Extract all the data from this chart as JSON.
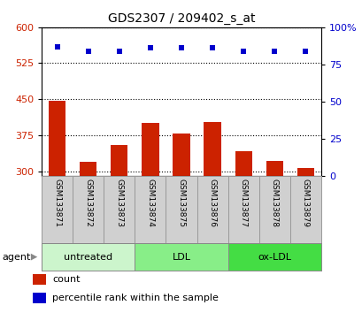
{
  "title": "GDS2307 / 209402_s_at",
  "samples": [
    "GSM133871",
    "GSM133872",
    "GSM133873",
    "GSM133874",
    "GSM133875",
    "GSM133876",
    "GSM133877",
    "GSM133878",
    "GSM133879"
  ],
  "bar_values": [
    447,
    320,
    355,
    400,
    378,
    402,
    342,
    322,
    307
  ],
  "percentile_values": [
    87,
    84,
    84,
    86,
    86,
    86,
    84,
    84,
    84
  ],
  "ylim_left": [
    290,
    600
  ],
  "ylim_right": [
    0,
    100
  ],
  "yticks_left": [
    300,
    375,
    450,
    525,
    600
  ],
  "yticks_right": [
    0,
    25,
    50,
    75,
    100
  ],
  "bar_color": "#cc2200",
  "dot_color": "#0000cc",
  "groups": [
    {
      "label": "untreated",
      "start": 0,
      "end": 3,
      "color": "#ccf5cc"
    },
    {
      "label": "LDL",
      "start": 3,
      "end": 6,
      "color": "#88ee88"
    },
    {
      "label": "ox-LDL",
      "start": 6,
      "end": 9,
      "color": "#44dd44"
    }
  ],
  "group_row_label": "agent",
  "legend_count_label": "count",
  "legend_percentile_label": "percentile rank within the sample",
  "bar_width": 0.55,
  "background_color": "#ffffff",
  "plot_bg_color": "#ffffff",
  "sample_area_color": "#d0d0d0"
}
